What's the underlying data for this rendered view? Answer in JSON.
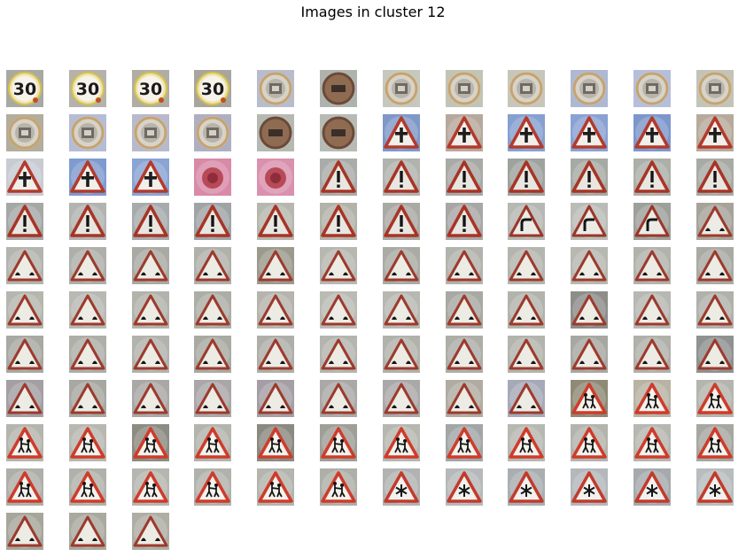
{
  "title": "Images in cluster 12",
  "columns": 12,
  "images": [
    {
      "kind": "speed30",
      "bg": "#a9a9a3"
    },
    {
      "kind": "speed30",
      "bg": "#b4b2aa"
    },
    {
      "kind": "speed30",
      "bg": "#b0aea4"
    },
    {
      "kind": "speed30",
      "bg": "#a7a59e"
    },
    {
      "kind": "circle-pictogram",
      "bg": "#b9bccb"
    },
    {
      "kind": "circle-dark",
      "bg": "#aeb4ad"
    },
    {
      "kind": "circle-pictogram",
      "bg": "#c6c8bd"
    },
    {
      "kind": "circle-pictogram",
      "bg": "#c2c4b6"
    },
    {
      "kind": "circle-pictogram",
      "bg": "#c8c6b9"
    },
    {
      "kind": "circle-pictogram",
      "bg": "#aeb8d2"
    },
    {
      "kind": "circle-pictogram",
      "bg": "#b6bfd9"
    },
    {
      "kind": "circle-pictogram",
      "bg": "#c3c3b8"
    },
    {
      "kind": "circle-pictogram",
      "bg": "#b2ad9c"
    },
    {
      "kind": "circle-pictogram",
      "bg": "#b6bcd3"
    },
    {
      "kind": "circle-pictogram",
      "bg": "#b8bacb"
    },
    {
      "kind": "circle-pictogram",
      "bg": "#aeb0c1"
    },
    {
      "kind": "circle-dark",
      "bg": "#b5b9b2"
    },
    {
      "kind": "circle-dark",
      "bg": "#b7bbb4"
    },
    {
      "kind": "triangle-cross",
      "bg": "#7f98c8"
    },
    {
      "kind": "triangle-cross",
      "bg": "#b8a89c"
    },
    {
      "kind": "triangle-cross",
      "bg": "#86a0d0"
    },
    {
      "kind": "triangle-cross",
      "bg": "#8aa2d2"
    },
    {
      "kind": "triangle-cross",
      "bg": "#7d97cb"
    },
    {
      "kind": "triangle-cross",
      "bg": "#b7aa9c"
    },
    {
      "kind": "triangle-cross",
      "bg": "#c9cbd3"
    },
    {
      "kind": "triangle-cross",
      "bg": "#7f9bd0"
    },
    {
      "kind": "triangle-cross",
      "bg": "#8aa4d4"
    },
    {
      "kind": "pink-blob",
      "bg": "#d88aa6"
    },
    {
      "kind": "pink-blob",
      "bg": "#d992ae"
    },
    {
      "kind": "triangle-excl",
      "bg": "#a9aca8"
    },
    {
      "kind": "triangle-excl",
      "bg": "#b1b3ad"
    },
    {
      "kind": "triangle-excl",
      "bg": "#a8aaa6"
    },
    {
      "kind": "triangle-excl",
      "bg": "#9fa39e"
    },
    {
      "kind": "triangle-excl",
      "bg": "#a6aaa4"
    },
    {
      "kind": "triangle-excl",
      "bg": "#adb0a9"
    },
    {
      "kind": "triangle-excl",
      "bg": "#a8aba5"
    },
    {
      "kind": "triangle-excl",
      "bg": "#a5a9a6"
    },
    {
      "kind": "triangle-excl",
      "bg": "#b1b4b1"
    },
    {
      "kind": "triangle-excl",
      "bg": "#a7abad"
    },
    {
      "kind": "triangle-excl",
      "bg": "#9fa4a6"
    },
    {
      "kind": "triangle-excl",
      "bg": "#b6b7ae"
    },
    {
      "kind": "triangle-excl",
      "bg": "#b4b3a9"
    },
    {
      "kind": "triangle-excl",
      "bg": "#aaa9a4"
    },
    {
      "kind": "triangle-excl",
      "bg": "#a9a7a6"
    },
    {
      "kind": "triangle-curve",
      "bg": "#b6b8b3"
    },
    {
      "kind": "triangle-curve",
      "bg": "#babcb7"
    },
    {
      "kind": "triangle-curve",
      "bg": "#9ea09a"
    },
    {
      "kind": "triangle-bumps",
      "bg": "#a7a39a"
    },
    {
      "kind": "triangle-bumps",
      "bg": "#b3b4ae"
    },
    {
      "kind": "triangle-bumps",
      "bg": "#aeafa9"
    },
    {
      "kind": "triangle-bumps",
      "bg": "#a9aaa4"
    },
    {
      "kind": "triangle-bumps",
      "bg": "#b0b1ab"
    },
    {
      "kind": "triangle-bumps",
      "bg": "#9c9a8d"
    },
    {
      "kind": "triangle-bumps",
      "bg": "#b7b8b1"
    },
    {
      "kind": "triangle-bumps",
      "bg": "#a9aba4"
    },
    {
      "kind": "triangle-bumps",
      "bg": "#b2b3ad"
    },
    {
      "kind": "triangle-bumps",
      "bg": "#b4b5ae"
    },
    {
      "kind": "triangle-bumps",
      "bg": "#b7b8b1"
    },
    {
      "kind": "triangle-bumps",
      "bg": "#b2b3ac"
    },
    {
      "kind": "triangle-bumps",
      "bg": "#a9aaa3"
    },
    {
      "kind": "triangle-bumps",
      "bg": "#b5b6ae"
    },
    {
      "kind": "triangle-bumps",
      "bg": "#b8b9b2"
    },
    {
      "kind": "triangle-bumps",
      "bg": "#b2b3ab"
    },
    {
      "kind": "triangle-bumps",
      "bg": "#acaea6"
    },
    {
      "kind": "triangle-bumps",
      "bg": "#b6b4ad"
    },
    {
      "kind": "triangle-bumps",
      "bg": "#babbb4"
    },
    {
      "kind": "triangle-bumps",
      "bg": "#b8b8b2"
    },
    {
      "kind": "triangle-bumps",
      "bg": "#a8a9a3"
    },
    {
      "kind": "triangle-bumps",
      "bg": "#b2b4ac"
    },
    {
      "kind": "triangle-bumps",
      "bg": "#8d8e8a"
    },
    {
      "kind": "triangle-bumps",
      "bg": "#b6b8b2"
    },
    {
      "kind": "triangle-bumps",
      "bg": "#b0b1ab"
    },
    {
      "kind": "triangle-bumps",
      "bg": "#a8a9a3"
    },
    {
      "kind": "triangle-bumps",
      "bg": "#adafa8"
    },
    {
      "kind": "triangle-bumps",
      "bg": "#b2b3ad"
    },
    {
      "kind": "triangle-bumps",
      "bg": "#a9aaa3"
    },
    {
      "kind": "triangle-bumps",
      "bg": "#aeafa9"
    },
    {
      "kind": "triangle-bumps",
      "bg": "#b4b5af"
    },
    {
      "kind": "triangle-bumps",
      "bg": "#b1b2ab"
    },
    {
      "kind": "triangle-bumps",
      "bg": "#adaea8"
    },
    {
      "kind": "triangle-bumps",
      "bg": "#b3b4ad"
    },
    {
      "kind": "triangle-bumps",
      "bg": "#a7a8a2"
    },
    {
      "kind": "triangle-bumps",
      "bg": "#b0b1ab"
    },
    {
      "kind": "triangle-bumps",
      "bg": "#8f9290"
    },
    {
      "kind": "triangle-bumps",
      "bg": "#a39fa3"
    },
    {
      "kind": "triangle-bumps",
      "bg": "#a7a8a1"
    },
    {
      "kind": "triangle-bumps",
      "bg": "#a9a8a6"
    },
    {
      "kind": "triangle-bumps",
      "bg": "#aaa7a8"
    },
    {
      "kind": "triangle-bumps",
      "bg": "#a49fa4"
    },
    {
      "kind": "triangle-bumps",
      "bg": "#aaa9a7"
    },
    {
      "kind": "triangle-bumps",
      "bg": "#aaa8a8"
    },
    {
      "kind": "triangle-bumps",
      "bg": "#b0aca2"
    },
    {
      "kind": "triangle-bumps",
      "bg": "#a6a9b8"
    },
    {
      "kind": "triangle-children",
      "bg": "#8f8a76"
    },
    {
      "kind": "triangle-children",
      "bg": "#b8b3a4"
    },
    {
      "kind": "triangle-children",
      "bg": "#b4b5ae"
    },
    {
      "kind": "triangle-children",
      "bg": "#b5b5ae"
    },
    {
      "kind": "triangle-children",
      "bg": "#b8b8b1"
    },
    {
      "kind": "triangle-children",
      "bg": "#8d8c82"
    },
    {
      "kind": "triangle-children",
      "bg": "#b3b4ad"
    },
    {
      "kind": "triangle-children",
      "bg": "#8a8a80"
    },
    {
      "kind": "triangle-children",
      "bg": "#9f9f98"
    },
    {
      "kind": "triangle-children",
      "bg": "#b6b7b0"
    },
    {
      "kind": "triangle-children",
      "bg": "#a3a6a6"
    },
    {
      "kind": "triangle-children",
      "bg": "#b7b8b1"
    },
    {
      "kind": "triangle-children",
      "bg": "#b3b4ad"
    },
    {
      "kind": "triangle-children",
      "bg": "#b6b7b0"
    },
    {
      "kind": "triangle-children",
      "bg": "#a6a7a1"
    },
    {
      "kind": "triangle-children",
      "bg": "#aeafa9"
    },
    {
      "kind": "triangle-children",
      "bg": "#b0b1aa"
    },
    {
      "kind": "triangle-children",
      "bg": "#b5b6af"
    },
    {
      "kind": "triangle-children",
      "bg": "#b1b2ab"
    },
    {
      "kind": "triangle-children",
      "bg": "#b4b5ae"
    },
    {
      "kind": "triangle-children",
      "bg": "#aeafa8"
    },
    {
      "kind": "triangle-snow",
      "bg": "#b1b3b3"
    },
    {
      "kind": "triangle-snow",
      "bg": "#b6b9ba"
    },
    {
      "kind": "triangle-snow",
      "bg": "#a9aeb0"
    },
    {
      "kind": "triangle-snow",
      "bg": "#b4b8ba"
    },
    {
      "kind": "triangle-snow",
      "bg": "#a6aaac"
    },
    {
      "kind": "triangle-snow",
      "bg": "#b8bcbd"
    },
    {
      "kind": "triangle-bumps",
      "bg": "#a6a69c"
    },
    {
      "kind": "triangle-bumps",
      "bg": "#a9a99f"
    },
    {
      "kind": "triangle-bumps",
      "bg": "#aeaea4"
    }
  ]
}
